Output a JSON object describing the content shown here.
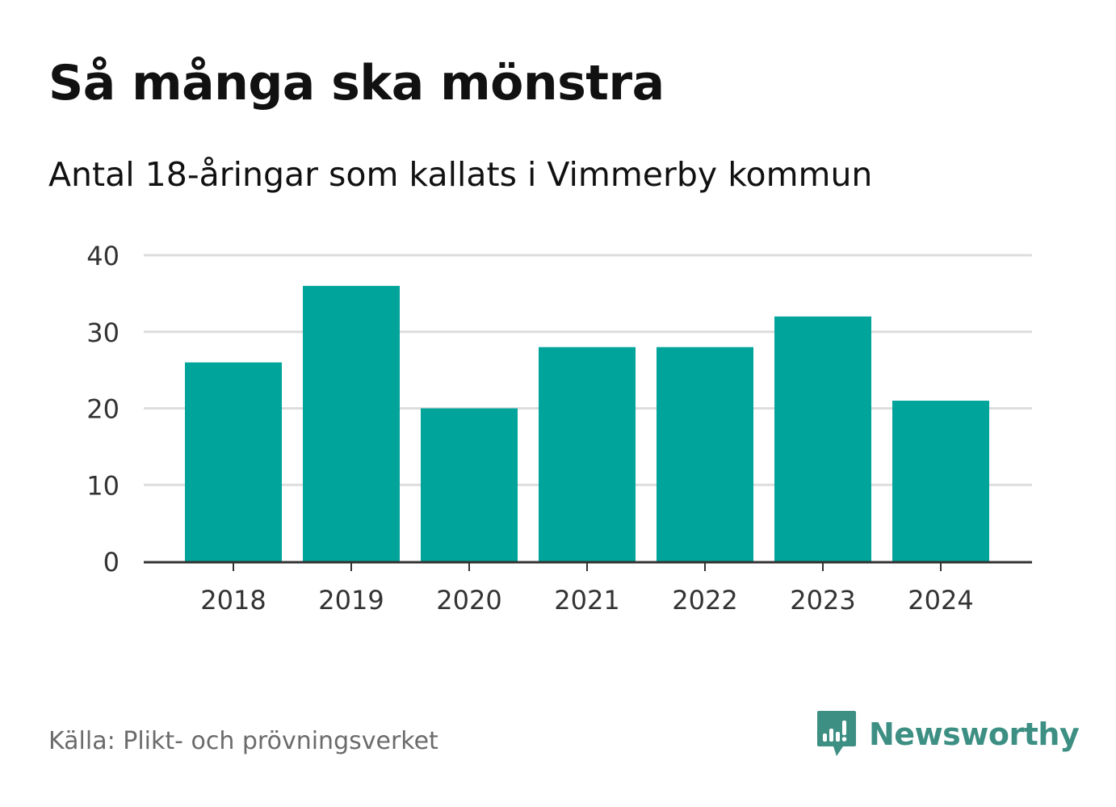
{
  "header": {
    "title": "Så många ska mönstra",
    "subtitle": "Antal 18-åringar som kallats i Vimmerby kommun"
  },
  "footer": {
    "source": "Källa: Plikt- och prövningsverket",
    "brand": "Newsworthy",
    "brand_icon": "bar-chart-speech-bubble-icon"
  },
  "colors": {
    "bar": "#00a49a",
    "gridline": "#dddddd",
    "axis": "#333333",
    "brand": "#3d8f84"
  },
  "chart_data": {
    "type": "bar",
    "title": "Så många ska mönstra",
    "subtitle": "Antal 18-åringar som kallats i Vimmerby kommun",
    "xlabel": "",
    "ylabel": "",
    "categories": [
      "2018",
      "2019",
      "2020",
      "2021",
      "2022",
      "2023",
      "2024"
    ],
    "values": [
      26,
      36,
      20,
      28,
      28,
      32,
      21
    ],
    "ylim": [
      0,
      40
    ],
    "yticks": [
      0,
      10,
      20,
      30,
      40
    ],
    "grid": true,
    "legend": "none"
  }
}
